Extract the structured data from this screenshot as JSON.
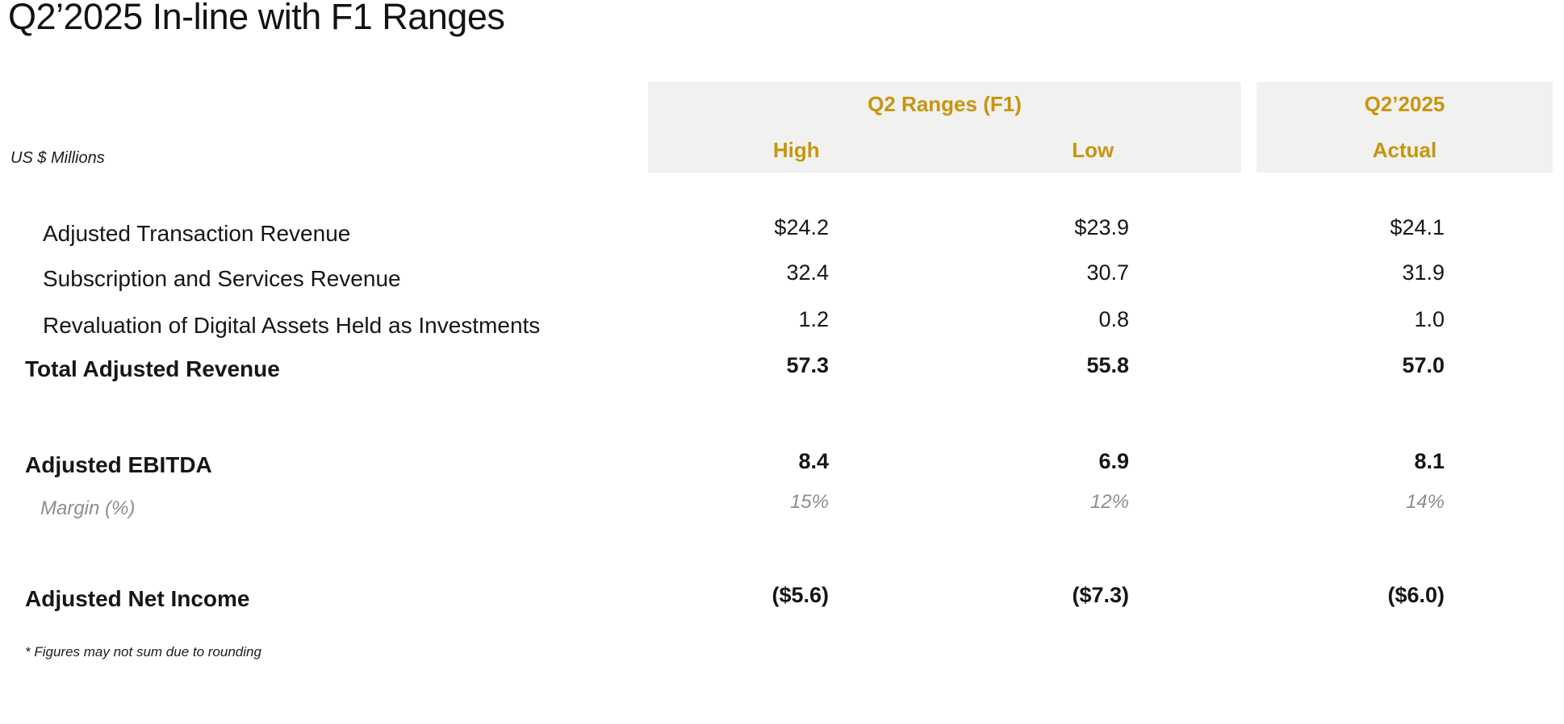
{
  "slide": {
    "title": "Q2’2025 In-line with F1 Ranges",
    "units_label": "US $ Millions",
    "footnote": "* Figures may not sum due to rounding",
    "colors": {
      "accent_gold": "#C7950E",
      "header_band_background": "#F1F1EF",
      "text": "#161616",
      "muted_gray": "#8E8E8E"
    }
  },
  "table": {
    "group_headers": [
      {
        "label": "Q2 Ranges (F1)",
        "columns": [
          "High",
          "Low"
        ]
      },
      {
        "label": "Q2’2025",
        "columns": [
          "Actual"
        ]
      }
    ],
    "column_headers": [
      "High",
      "Low",
      "Actual"
    ],
    "rows": [
      {
        "label": "Adjusted Transaction Revenue",
        "style": "regular",
        "values": [
          "$24.2",
          "$23.9",
          "$24.1"
        ]
      },
      {
        "label": "Subscription and Services Revenue",
        "style": "regular",
        "values": [
          "32.4",
          "30.7",
          "31.9"
        ]
      },
      {
        "label": "Revaluation of Digital Assets Held as Investments",
        "style": "regular",
        "values": [
          "1.2",
          "0.8",
          "1.0"
        ]
      },
      {
        "label": "Total Adjusted Revenue",
        "style": "total",
        "values": [
          "57.3",
          "55.8",
          "57.0"
        ]
      },
      {
        "label": "Adjusted EBITDA",
        "style": "total",
        "values": [
          "8.4",
          "6.9",
          "8.1"
        ]
      },
      {
        "label": "Margin (%)",
        "style": "margin",
        "values": [
          "15%",
          "12%",
          "14%"
        ]
      },
      {
        "label": "Adjusted Net Income",
        "style": "total",
        "values": [
          "($5.6)",
          "($7.3)",
          "($6.0)"
        ]
      }
    ]
  }
}
